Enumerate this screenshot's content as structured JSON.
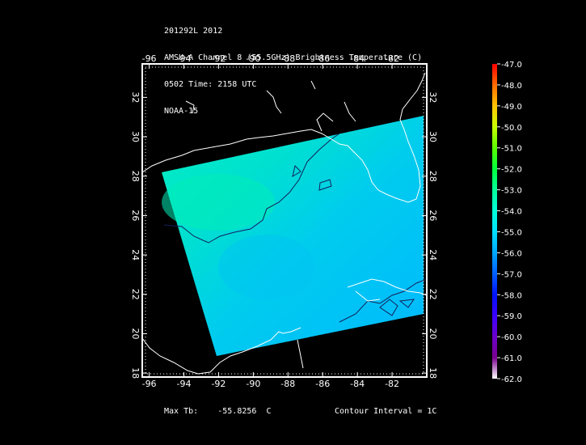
{
  "header": {
    "line1": "201292L 2012",
    "line2": "AMSU-A Channel 8 (55.5GHz) Brightness Temperature (C)",
    "line3": "0502 Time: 2158 UTC",
    "line4": "NOAA-15"
  },
  "map": {
    "lon_ticks": [
      "-96",
      "-94",
      "-92",
      "-90",
      "-88",
      "-86",
      "-84",
      "-82"
    ],
    "lat_ticks": [
      "18",
      "20",
      "22",
      "24",
      "26",
      "28",
      "30",
      "32"
    ],
    "lon_range": [
      -96.4,
      -80.0
    ],
    "lat_range": [
      17.8,
      33.7
    ]
  },
  "colorbar": {
    "labels": [
      "-47.0",
      "-48.0",
      "-49.0",
      "-50.0",
      "-51.0",
      "-52.0",
      "-53.0",
      "-54.0",
      "-55.0",
      "-56.0",
      "-57.0",
      "-58.0",
      "-59.0",
      "-60.0",
      "-61.0",
      "-62.0"
    ],
    "colors": [
      "#ff0000",
      "#ff6a00",
      "#ffc400",
      "#c8ff00",
      "#5aff00",
      "#00ff3c",
      "#00ff9a",
      "#00ffd8",
      "#00e0ff",
      "#00a8ff",
      "#0060ff",
      "#0014ff",
      "#3a00ff",
      "#6a00c8",
      "#7a0090",
      "#ffffff"
    ]
  },
  "footer": {
    "max_tb_label": "Max Tb:",
    "max_tb_value": "-55.8256",
    "max_tb_unit": "C",
    "contour_label": "Contour Interval = 1C"
  }
}
